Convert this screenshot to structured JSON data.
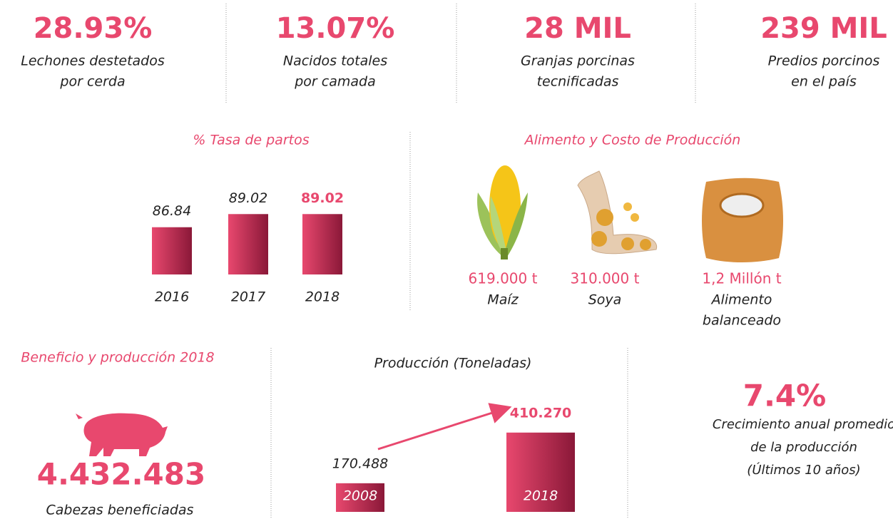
{
  "stats": [
    {
      "value": "28.93%",
      "label": [
        "Lechones destetados",
        "por cerda"
      ]
    },
    {
      "value": "13.07%",
      "label": [
        "Nacidos totales",
        "por camada"
      ]
    },
    {
      "value": "28 MIL",
      "label": [
        "Granjas porcinas",
        "tecnificadas"
      ]
    },
    {
      "value": "239 MIL",
      "label": [
        "Predios porcinos",
        "en el país"
      ]
    }
  ],
  "alimento": {
    "title": "Alimento y Costo de Producción",
    "items": [
      {
        "amount": "619.000 t",
        "name": [
          "Maíz"
        ]
      },
      {
        "amount": "310.000 t",
        "name": [
          "Soya"
        ]
      },
      {
        "amount": "1,2 Millón t",
        "name": [
          "Alimento",
          "balanceado"
        ]
      }
    ]
  },
  "beneficio": {
    "title": "Beneficio y producción 2018",
    "value": "4.432.483",
    "label": "Cabezas beneficiadas"
  },
  "crecimiento": {
    "value": "7.4%",
    "label": [
      "Crecimiento anual promedio",
      "de la producción",
      "(Últimos 10 años)"
    ]
  },
  "chart_data": [
    {
      "type": "bar",
      "title": "% Tasa de partos",
      "categories": [
        "2016",
        "2017",
        "2018"
      ],
      "values": [
        86.84,
        89.02,
        89.02
      ],
      "ylim": [
        79,
        90
      ]
    },
    {
      "type": "bar",
      "title": "Producción (Toneladas)",
      "categories": [
        "2008",
        "2018"
      ],
      "values": [
        170488,
        410270
      ],
      "value_labels": [
        "170.488",
        "410.270"
      ],
      "ylim": [
        35000,
        450000
      ]
    }
  ]
}
